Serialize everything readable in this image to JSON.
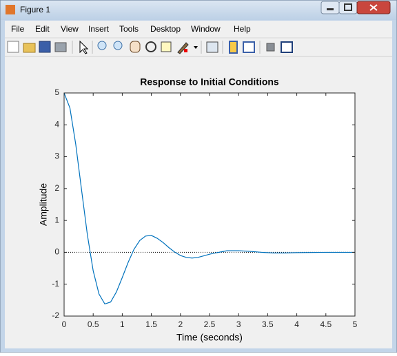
{
  "window": {
    "title": "Figure 1",
    "menu": [
      "File",
      "Edit",
      "View",
      "Insert",
      "Tools",
      "Desktop",
      "Window",
      "Help"
    ]
  },
  "chart_data": {
    "type": "line",
    "title": "Response to Initial Conditions",
    "xlabel": "Time (seconds)",
    "ylabel": "Amplitude",
    "x": [
      0,
      0.1,
      0.2,
      0.3,
      0.4,
      0.5,
      0.6,
      0.7,
      0.8,
      0.9,
      1.0,
      1.1,
      1.2,
      1.3,
      1.4,
      1.5,
      1.6,
      1.7,
      1.8,
      1.9,
      2.0,
      2.1,
      2.2,
      2.3,
      2.4,
      2.5,
      2.6,
      2.8,
      3.0,
      3.2,
      3.4,
      3.6,
      3.8,
      4.0,
      4.5,
      5.0
    ],
    "values": [
      5,
      4.53,
      3.39,
      1.96,
      0.55,
      -0.58,
      -1.31,
      -1.62,
      -1.56,
      -1.24,
      -0.79,
      -0.32,
      0.09,
      0.37,
      0.51,
      0.53,
      0.44,
      0.31,
      0.15,
      0.01,
      -0.1,
      -0.16,
      -0.18,
      -0.16,
      -0.11,
      -0.06,
      -0.02,
      0.05,
      0.05,
      0.03,
      0,
      -0.02,
      -0.02,
      -0.01,
      0,
      0
    ],
    "color": "#0072bd",
    "reference_y": 0,
    "xlim": [
      0,
      5
    ],
    "ylim": [
      -2,
      5
    ],
    "xticks": [
      0,
      0.5,
      1,
      1.5,
      2,
      2.5,
      3,
      3.5,
      4,
      4.5,
      5
    ],
    "yticks": [
      -2,
      -1,
      0,
      1,
      2,
      3,
      4,
      5
    ],
    "grid": false
  }
}
